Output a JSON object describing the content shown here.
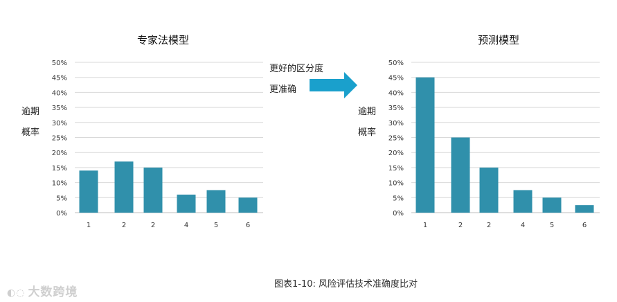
{
  "chart_data": [
    {
      "type": "bar",
      "title": "专家法模型",
      "ylabel": "逾期概率",
      "ylabel_lines": [
        "逾期",
        "概率"
      ],
      "categories": [
        "1",
        "2",
        "2",
        "4",
        "5",
        "6"
      ],
      "values": [
        14,
        17,
        15,
        6,
        7.5,
        5
      ],
      "ylim": [
        0,
        50
      ],
      "yticks": [
        "0%",
        "5%",
        "10%",
        "15%",
        "20%",
        "25%",
        "30%",
        "35%",
        "40%",
        "45%",
        "50%"
      ],
      "grid": true,
      "bar_color": "#3090ab"
    },
    {
      "type": "bar",
      "title": "预测模型",
      "ylabel": "逾期概率",
      "ylabel_lines": [
        "逾期",
        "概率"
      ],
      "categories": [
        "1",
        "2",
        "2",
        "4",
        "5",
        "6"
      ],
      "values": [
        45,
        25,
        15,
        7.5,
        5,
        2.5
      ],
      "ylim": [
        0,
        50
      ],
      "yticks": [
        "0%",
        "5%",
        "10%",
        "15%",
        "20%",
        "25%",
        "30%",
        "35%",
        "40%",
        "45%",
        "50%"
      ],
      "grid": true,
      "bar_color": "#3090ab"
    }
  ],
  "annotation": {
    "line1": "更好的区分度",
    "line2": "更准确",
    "arrow_color": "#1aa0cc"
  },
  "caption": "图表1-10: 风险评估技术准确度比对",
  "watermark": "大数跨境"
}
